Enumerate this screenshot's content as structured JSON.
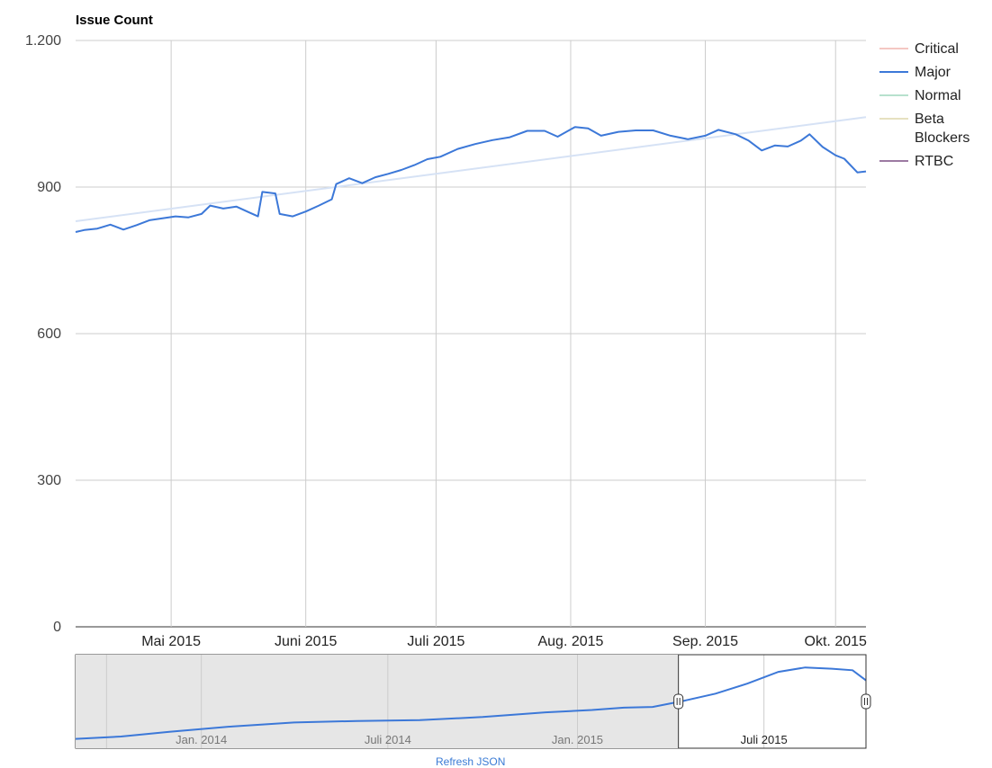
{
  "chart_data": {
    "type": "line",
    "title": "Issue Count",
    "xlabel": "",
    "ylabel": "",
    "ylim": [
      0,
      1200
    ],
    "y_ticks": [
      0,
      300,
      600,
      900,
      1200
    ],
    "y_tick_labels": [
      "0",
      "300",
      "600",
      "900",
      "1.200"
    ],
    "x_ticks": [
      {
        "date": "2015-05-01",
        "label": "Mai 2015"
      },
      {
        "date": "2015-06-01",
        "label": "Juni 2015"
      },
      {
        "date": "2015-07-01",
        "label": "Juli 2015"
      },
      {
        "date": "2015-08-01",
        "label": "Aug. 2015"
      },
      {
        "date": "2015-09-01",
        "label": "Sep. 2015"
      },
      {
        "date": "2015-10-01",
        "label": "Okt. 2015"
      }
    ],
    "xlim": [
      "2015-04-09",
      "2015-10-08"
    ],
    "grid": true,
    "legend_position": "right",
    "colors": {
      "Critical": "#f4c7c3",
      "Major": "#3c78d8",
      "Normal": "#b7e1cd",
      "Beta Blockers": "#e6e1c0",
      "RTBC": "#9c7aa2",
      "trendline": "#d6e2f5"
    },
    "series": [
      {
        "name": "Critical",
        "points": []
      },
      {
        "name": "Major",
        "points": [
          [
            "2015-04-09",
            808
          ],
          [
            "2015-04-11",
            812
          ],
          [
            "2015-04-14",
            815
          ],
          [
            "2015-04-17",
            823
          ],
          [
            "2015-04-20",
            813
          ],
          [
            "2015-04-23",
            822
          ],
          [
            "2015-04-26",
            832
          ],
          [
            "2015-04-29",
            836
          ],
          [
            "2015-05-02",
            840
          ],
          [
            "2015-05-05",
            838
          ],
          [
            "2015-05-08",
            845
          ],
          [
            "2015-05-10",
            862
          ],
          [
            "2015-05-13",
            856
          ],
          [
            "2015-05-16",
            860
          ],
          [
            "2015-05-19",
            848
          ],
          [
            "2015-05-21",
            840
          ],
          [
            "2015-05-22",
            890
          ],
          [
            "2015-05-25",
            887
          ],
          [
            "2015-05-26",
            845
          ],
          [
            "2015-05-29",
            840
          ],
          [
            "2015-06-01",
            850
          ],
          [
            "2015-06-04",
            862
          ],
          [
            "2015-06-07",
            875
          ],
          [
            "2015-06-08",
            906
          ],
          [
            "2015-06-11",
            918
          ],
          [
            "2015-06-14",
            908
          ],
          [
            "2015-06-17",
            920
          ],
          [
            "2015-06-20",
            927
          ],
          [
            "2015-06-23",
            935
          ],
          [
            "2015-06-26",
            945
          ],
          [
            "2015-06-29",
            957
          ],
          [
            "2015-07-02",
            962
          ],
          [
            "2015-07-06",
            978
          ],
          [
            "2015-07-10",
            988
          ],
          [
            "2015-07-14",
            996
          ],
          [
            "2015-07-18",
            1002
          ],
          [
            "2015-07-22",
            1015
          ],
          [
            "2015-07-26",
            1015
          ],
          [
            "2015-07-29",
            1003
          ],
          [
            "2015-08-02",
            1023
          ],
          [
            "2015-08-05",
            1020
          ],
          [
            "2015-08-08",
            1005
          ],
          [
            "2015-08-12",
            1013
          ],
          [
            "2015-08-16",
            1016
          ],
          [
            "2015-08-20",
            1016
          ],
          [
            "2015-08-24",
            1005
          ],
          [
            "2015-08-28",
            998
          ],
          [
            "2015-09-01",
            1005
          ],
          [
            "2015-09-04",
            1017
          ],
          [
            "2015-09-08",
            1008
          ],
          [
            "2015-09-11",
            995
          ],
          [
            "2015-09-14",
            975
          ],
          [
            "2015-09-17",
            985
          ],
          [
            "2015-09-20",
            983
          ],
          [
            "2015-09-23",
            995
          ],
          [
            "2015-09-25",
            1008
          ],
          [
            "2015-09-28",
            982
          ],
          [
            "2015-10-01",
            965
          ],
          [
            "2015-10-03",
            958
          ],
          [
            "2015-10-06",
            930
          ],
          [
            "2015-10-08",
            932
          ]
        ]
      },
      {
        "name": "Normal",
        "points": []
      },
      {
        "name": "Beta Blockers",
        "points": []
      },
      {
        "name": "RTBC",
        "points": []
      }
    ],
    "trendline": {
      "series": "Major",
      "points": [
        [
          "2015-04-09",
          830
        ],
        [
          "2015-10-08",
          1043
        ]
      ]
    },
    "range_selector": {
      "xlim": [
        "2013-09-01",
        "2015-10-08"
      ],
      "selected": [
        "2015-04-09",
        "2015-10-08"
      ],
      "tick_labels": [
        {
          "date": "2014-01-01",
          "label": "Jan. 2014"
        },
        {
          "date": "2014-07-01",
          "label": "Juli 2014"
        },
        {
          "date": "2015-01-01",
          "label": "Jan. 2015"
        },
        {
          "date": "2015-07-01",
          "label": "Juli 2015"
        }
      ],
      "grid_dates": [
        "2013-10-01",
        "2014-01-01",
        "2014-07-01",
        "2015-01-01",
        "2015-07-01"
      ],
      "ylim": [
        500,
        1100
      ],
      "points": [
        [
          "2013-09-01",
          560
        ],
        [
          "2013-10-15",
          575
        ],
        [
          "2013-12-01",
          605
        ],
        [
          "2014-02-01",
          640
        ],
        [
          "2014-04-01",
          665
        ],
        [
          "2014-06-01",
          675
        ],
        [
          "2014-08-01",
          680
        ],
        [
          "2014-10-01",
          700
        ],
        [
          "2014-12-01",
          730
        ],
        [
          "2015-01-15",
          745
        ],
        [
          "2015-02-15",
          760
        ],
        [
          "2015-03-15",
          765
        ],
        [
          "2015-04-15",
          805
        ],
        [
          "2015-05-15",
          850
        ],
        [
          "2015-06-15",
          915
        ],
        [
          "2015-07-15",
          990
        ],
        [
          "2015-08-10",
          1018
        ],
        [
          "2015-09-05",
          1010
        ],
        [
          "2015-09-25",
          1000
        ],
        [
          "2015-10-08",
          935
        ]
      ]
    }
  },
  "footer": {
    "link_text": "Refresh JSON"
  }
}
